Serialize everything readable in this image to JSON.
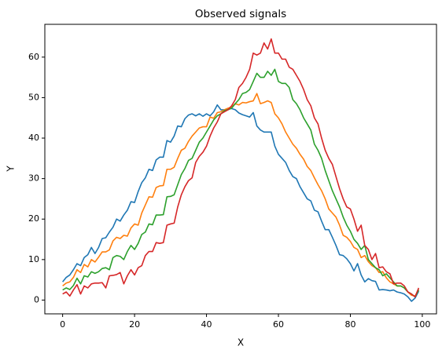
{
  "chart_data": {
    "type": "line",
    "title": "Observed signals",
    "x_label": "X",
    "y_label": "Y",
    "x": [
      0,
      1,
      2,
      3,
      4,
      5,
      6,
      7,
      8,
      9,
      10,
      11,
      12,
      13,
      14,
      15,
      16,
      17,
      18,
      19,
      20,
      21,
      22,
      23,
      24,
      25,
      26,
      27,
      28,
      29,
      30,
      31,
      32,
      33,
      34,
      35,
      36,
      37,
      38,
      39,
      40,
      41,
      42,
      43,
      44,
      45,
      46,
      47,
      48,
      49,
      50,
      51,
      52,
      53,
      54,
      55,
      56,
      57,
      58,
      59,
      60,
      61,
      62,
      63,
      64,
      65,
      66,
      67,
      68,
      69,
      70,
      71,
      72,
      73,
      74,
      75,
      76,
      77,
      78,
      79,
      80,
      81,
      82,
      83,
      84,
      85,
      86,
      87,
      88,
      89,
      90,
      91,
      92,
      93,
      94,
      95,
      96,
      97,
      98,
      99
    ],
    "series": [
      {
        "color": "#1f77b4",
        "values": [
          4.5,
          5.6,
          6.2,
          7.5,
          9.0,
          8.5,
          10.5,
          11.2,
          13.0,
          11.5,
          13.0,
          15.2,
          15.4,
          16.8,
          18.0,
          20.0,
          19.5,
          21.0,
          22.2,
          24.3,
          24.1,
          26.8,
          29.0,
          30.2,
          32.3,
          32.0,
          34.6,
          35.3,
          35.3,
          39.4,
          39.0,
          40.5,
          43.0,
          42.8,
          44.8,
          45.7,
          46.0,
          45.5,
          46.0,
          45.4,
          46.0,
          45.5,
          46.5,
          48.2,
          47.0,
          47.0,
          47.2,
          47.3,
          47.0,
          46.2,
          45.8,
          45.5,
          45.2,
          46.3,
          43.0,
          42.0,
          41.5,
          41.5,
          41.5,
          38.0,
          36.0,
          35.0,
          34.0,
          32.0,
          30.5,
          30.0,
          28.0,
          26.5,
          25.0,
          24.5,
          22.2,
          21.8,
          19.5,
          17.4,
          17.4,
          15.5,
          13.5,
          11.2,
          11.0,
          10.2,
          9.0,
          7.2,
          9.0,
          6.2,
          4.5,
          5.3,
          4.8,
          4.6,
          2.5,
          2.6,
          2.5,
          2.3,
          2.5,
          2.0,
          1.8,
          1.5,
          0.8,
          -0.3,
          0.5,
          2.2
        ]
      },
      {
        "color": "#ff7f0e",
        "values": [
          3.5,
          4.2,
          4.5,
          5.6,
          7.5,
          6.8,
          8.8,
          8.2,
          10.0,
          9.4,
          10.6,
          11.9,
          11.9,
          12.4,
          14.6,
          15.5,
          15.2,
          16.0,
          15.8,
          17.8,
          18.8,
          18.5,
          21.5,
          23.5,
          25.5,
          25.4,
          27.8,
          28.2,
          28.3,
          32.3,
          32.3,
          32.8,
          35.0,
          37.0,
          37.5,
          39.2,
          40.5,
          41.5,
          42.5,
          42.8,
          42.8,
          45.2,
          44.9,
          46.3,
          46.5,
          47.0,
          47.4,
          47.7,
          48.5,
          48.2,
          48.8,
          48.7,
          49.0,
          49.2,
          51.0,
          48.5,
          48.8,
          49.2,
          48.8,
          46.0,
          45.0,
          43.5,
          41.5,
          40.0,
          38.5,
          37.5,
          36.0,
          34.8,
          33.0,
          32.0,
          30.2,
          28.5,
          27.0,
          25.0,
          22.5,
          21.5,
          20.5,
          18.5,
          16.0,
          15.5,
          14.5,
          13.0,
          12.5,
          10.5,
          11.0,
          9.5,
          8.5,
          8.0,
          6.8,
          7.0,
          5.5,
          4.5,
          4.0,
          3.5,
          3.5,
          3.0,
          2.0,
          1.2,
          1.0,
          2.6
        ]
      },
      {
        "color": "#2ca02c",
        "values": [
          2.5,
          3.0,
          2.6,
          3.6,
          5.4,
          4.0,
          6.0,
          5.7,
          7.0,
          6.6,
          7.0,
          7.8,
          8.0,
          7.5,
          10.5,
          11.0,
          10.8,
          10.0,
          12.0,
          13.5,
          12.5,
          14.0,
          16.2,
          16.8,
          18.8,
          18.6,
          21.0,
          21.0,
          21.1,
          25.5,
          25.6,
          26.0,
          28.5,
          31.0,
          32.5,
          34.5,
          35.0,
          37.0,
          39.0,
          40.0,
          41.5,
          43.0,
          44.5,
          45.5,
          46.0,
          46.8,
          47.0,
          47.4,
          48.5,
          49.5,
          51.0,
          51.3,
          52.0,
          54.0,
          56.0,
          55.0,
          55.0,
          56.5,
          55.5,
          57.0,
          54.0,
          53.5,
          53.5,
          52.5,
          49.5,
          48.5,
          47.0,
          45.0,
          43.5,
          42.0,
          38.5,
          37.0,
          35.0,
          32.0,
          29.5,
          27.0,
          25.0,
          23.0,
          20.5,
          18.5,
          17.0,
          15.0,
          14.0,
          12.5,
          13.5,
          10.0,
          9.0,
          8.0,
          7.5,
          6.0,
          6.5,
          5.5,
          4.5,
          3.5,
          3.5,
          3.0,
          2.0,
          1.5,
          0.8,
          2.5
        ]
      },
      {
        "color": "#d62728",
        "values": [
          1.5,
          2.0,
          1.0,
          2.5,
          3.8,
          1.5,
          3.5,
          3.0,
          4.0,
          4.2,
          4.2,
          4.3,
          3.0,
          6.0,
          6.1,
          6.3,
          6.8,
          4.0,
          6.0,
          7.5,
          6.2,
          8.0,
          8.5,
          11.0,
          12.0,
          12.0,
          14.2,
          14.0,
          14.2,
          18.5,
          18.8,
          19.0,
          23.0,
          26.0,
          28.0,
          29.5,
          30.2,
          34.0,
          35.5,
          36.5,
          38.0,
          40.5,
          42.5,
          44.0,
          46.0,
          46.5,
          47.0,
          48.0,
          49.5,
          52.5,
          53.5,
          55.0,
          57.0,
          61.0,
          60.5,
          61.0,
          63.5,
          62.0,
          64.5,
          61.0,
          61.0,
          59.5,
          59.5,
          57.5,
          57.0,
          55.5,
          54.0,
          52.0,
          49.5,
          48.0,
          45.0,
          43.5,
          40.0,
          37.0,
          35.0,
          33.5,
          30.5,
          27.5,
          25.0,
          23.0,
          22.5,
          20.0,
          17.0,
          18.5,
          13.5,
          12.5,
          10.0,
          11.5,
          8.0,
          8.2,
          7.0,
          6.5,
          4.0,
          4.2,
          4.2,
          3.5,
          2.0,
          1.5,
          0.8,
          3.0
        ]
      }
    ],
    "xlim": [
      -4.95,
      103.95
    ],
    "ylim": [
      -3.4,
      68.1
    ],
    "xticks": [
      0,
      20,
      40,
      60,
      80,
      100
    ],
    "yticks": [
      0,
      10,
      20,
      30,
      40,
      50,
      60
    ],
    "grid": false
  }
}
